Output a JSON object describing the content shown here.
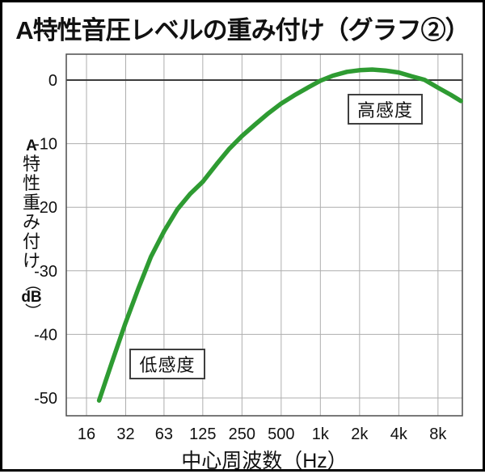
{
  "title": "A特性音圧レベルの重み付け（グラフ②）",
  "colors": {
    "curve": "#2e9b32",
    "grid": "#aeaeae",
    "zero_line": "#3c3c3c",
    "frame": "#4d4d4d",
    "text": "#111111",
    "background": "#ffffff",
    "outer_border": "#000000"
  },
  "chart_data": {
    "type": "line",
    "title": "A特性音圧レベルの重み付け（グラフ②）",
    "xlabel": "中心周波数（Hz）",
    "ylabel": "A特性重み付け（dB）",
    "ylabel_stack": [
      "A",
      "特",
      "性",
      "重",
      "み",
      "付",
      "け",
      "（",
      "dB",
      "）"
    ],
    "x_scale": "log",
    "x_tick_labels": [
      "16",
      "32",
      "63",
      "125",
      "250",
      "500",
      "1k",
      "2k",
      "4k",
      "8k"
    ],
    "x_tick_freqs": [
      16,
      32,
      63,
      125,
      250,
      500,
      1000,
      2000,
      4000,
      8000
    ],
    "y_ticks": [
      0,
      -10,
      -20,
      -30,
      -40,
      -50
    ],
    "xlim_hz": [
      11.2,
      12300
    ],
    "ylim": [
      -52.8,
      4.1
    ],
    "grid": true,
    "legend": false,
    "series": [
      {
        "name": "A特性重み付け",
        "points_hz_db": [
          [
            20,
            -50.4
          ],
          [
            25,
            -44.5
          ],
          [
            31.5,
            -38.5
          ],
          [
            40,
            -32.8
          ],
          [
            50,
            -27.8
          ],
          [
            63,
            -23.8
          ],
          [
            80,
            -20.3
          ],
          [
            100,
            -17.9
          ],
          [
            125,
            -16.0
          ],
          [
            160,
            -13.2
          ],
          [
            200,
            -10.8
          ],
          [
            250,
            -8.8
          ],
          [
            315,
            -7.0
          ],
          [
            400,
            -5.2
          ],
          [
            500,
            -3.7
          ],
          [
            630,
            -2.4
          ],
          [
            800,
            -1.2
          ],
          [
            1000,
            -0.1
          ],
          [
            1250,
            0.7
          ],
          [
            1600,
            1.3
          ],
          [
            2000,
            1.55
          ],
          [
            2500,
            1.65
          ],
          [
            3150,
            1.5
          ],
          [
            4000,
            1.2
          ],
          [
            5000,
            0.6
          ],
          [
            6300,
            0.05
          ],
          [
            8000,
            -1.2
          ],
          [
            10000,
            -2.3
          ],
          [
            12000,
            -3.3
          ]
        ]
      }
    ],
    "annotations": [
      {
        "text": "低感度"
      },
      {
        "text": "高感度"
      }
    ]
  }
}
